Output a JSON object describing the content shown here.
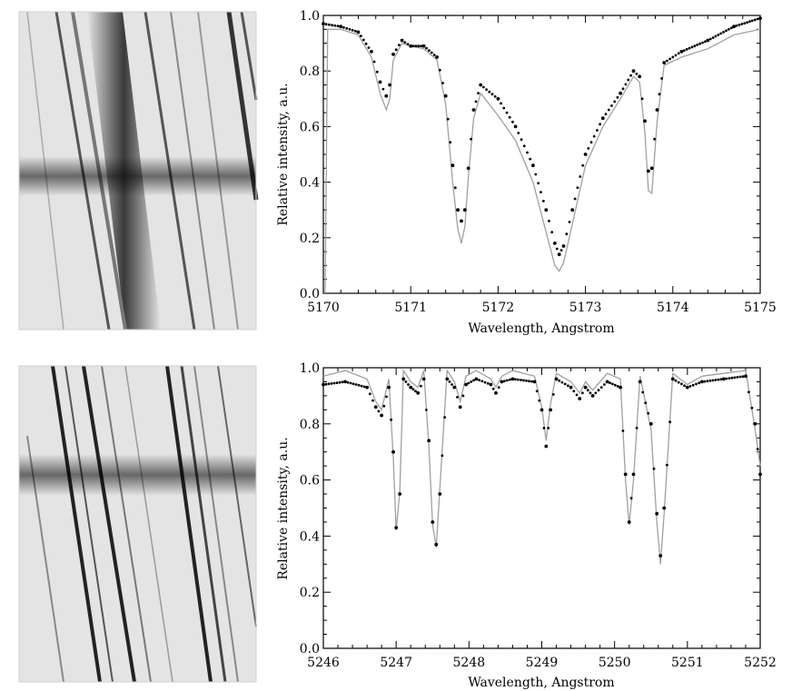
{
  "chart_data": [
    {
      "type": "scatter",
      "panel_image": "solar-spectrum-slit-image-1",
      "xlabel": "Wavelength, Angstrom",
      "ylabel": "Relative intensity, a.u.",
      "xlim": [
        5170,
        5175
      ],
      "ylim": [
        0,
        1.0
      ],
      "xticks": [
        "5170",
        "5171",
        "5172",
        "5173",
        "5174",
        "5175"
      ],
      "yticks": [
        "0.0",
        "0.2",
        "0.4",
        "0.6",
        "0.8",
        "1.0"
      ],
      "grid": false,
      "series": [
        {
          "style": "dots",
          "color": "#000000",
          "x": [
            5170.0,
            5170.2,
            5170.4,
            5170.55,
            5170.65,
            5170.72,
            5170.76,
            5170.8,
            5170.9,
            5171.0,
            5171.15,
            5171.3,
            5171.4,
            5171.48,
            5171.54,
            5171.58,
            5171.62,
            5171.66,
            5171.72,
            5171.8,
            5172.0,
            5172.2,
            5172.4,
            5172.55,
            5172.65,
            5172.7,
            5172.75,
            5172.85,
            5173.0,
            5173.2,
            5173.4,
            5173.55,
            5173.62,
            5173.68,
            5173.72,
            5173.76,
            5173.82,
            5173.9,
            5174.1,
            5174.4,
            5174.7,
            5175.0
          ],
          "y": [
            0.97,
            0.96,
            0.94,
            0.87,
            0.76,
            0.71,
            0.75,
            0.86,
            0.91,
            0.89,
            0.89,
            0.85,
            0.71,
            0.46,
            0.3,
            0.26,
            0.3,
            0.45,
            0.66,
            0.75,
            0.7,
            0.6,
            0.46,
            0.3,
            0.18,
            0.14,
            0.17,
            0.3,
            0.5,
            0.63,
            0.72,
            0.8,
            0.78,
            0.62,
            0.44,
            0.45,
            0.66,
            0.83,
            0.87,
            0.91,
            0.96,
            0.99
          ]
        },
        {
          "style": "line",
          "color": "#a0a0a0",
          "x": [
            5170.02,
            5170.05,
            5170.2,
            5170.4,
            5170.55,
            5170.65,
            5170.72,
            5170.76,
            5170.8,
            5170.9,
            5171.0,
            5171.15,
            5171.3,
            5171.4,
            5171.48,
            5171.54,
            5171.58,
            5171.62,
            5171.66,
            5171.72,
            5171.8,
            5172.0,
            5172.2,
            5172.4,
            5172.55,
            5172.65,
            5172.7,
            5172.75,
            5172.85,
            5173.0,
            5173.2,
            5173.4,
            5173.55,
            5173.62,
            5173.68,
            5173.72,
            5173.76,
            5173.82,
            5173.9,
            5174.1,
            5174.4,
            5174.7,
            5175.0
          ],
          "y": [
            0.0,
            0.95,
            0.95,
            0.93,
            0.85,
            0.72,
            0.66,
            0.7,
            0.84,
            0.9,
            0.89,
            0.88,
            0.84,
            0.68,
            0.4,
            0.23,
            0.18,
            0.24,
            0.42,
            0.63,
            0.72,
            0.64,
            0.55,
            0.4,
            0.22,
            0.1,
            0.08,
            0.11,
            0.25,
            0.46,
            0.6,
            0.7,
            0.78,
            0.76,
            0.58,
            0.37,
            0.36,
            0.62,
            0.82,
            0.85,
            0.88,
            0.93,
            0.95
          ]
        }
      ]
    },
    {
      "type": "scatter",
      "panel_image": "solar-spectrum-slit-image-2",
      "xlabel": "Wavelength, Angstrom",
      "ylabel": "Relative intensity, a.u.",
      "xlim": [
        5246,
        5252
      ],
      "ylim": [
        0,
        1.0
      ],
      "xticks": [
        "5246",
        "5247",
        "5248",
        "5249",
        "5250",
        "5251",
        "5252"
      ],
      "yticks": [
        "0.0",
        "0.2",
        "0.4",
        "0.6",
        "0.8",
        "1.0"
      ],
      "grid": false,
      "series": [
        {
          "style": "dots",
          "color": "#000000",
          "x": [
            5246.0,
            5246.3,
            5246.6,
            5246.72,
            5246.8,
            5246.9,
            5246.96,
            5247.0,
            5247.05,
            5247.1,
            5247.2,
            5247.3,
            5247.38,
            5247.45,
            5247.5,
            5247.55,
            5247.6,
            5247.7,
            5247.8,
            5247.88,
            5247.96,
            5248.1,
            5248.3,
            5248.37,
            5248.45,
            5248.6,
            5248.9,
            5249.0,
            5249.06,
            5249.12,
            5249.2,
            5249.4,
            5249.52,
            5249.6,
            5249.7,
            5249.9,
            5250.08,
            5250.15,
            5250.2,
            5250.26,
            5250.35,
            5250.5,
            5250.58,
            5250.63,
            5250.68,
            5250.8,
            5251.0,
            5251.2,
            5251.5,
            5251.8,
            5251.93,
            5252.0
          ],
          "y": [
            0.94,
            0.95,
            0.93,
            0.86,
            0.83,
            0.93,
            0.7,
            0.43,
            0.55,
            0.96,
            0.93,
            0.91,
            0.96,
            0.74,
            0.45,
            0.37,
            0.55,
            0.96,
            0.93,
            0.86,
            0.94,
            0.96,
            0.94,
            0.91,
            0.95,
            0.96,
            0.95,
            0.85,
            0.72,
            0.85,
            0.96,
            0.93,
            0.89,
            0.93,
            0.9,
            0.95,
            0.93,
            0.62,
            0.45,
            0.62,
            0.95,
            0.8,
            0.48,
            0.33,
            0.5,
            0.96,
            0.93,
            0.95,
            0.96,
            0.97,
            0.8,
            0.62
          ]
        },
        {
          "style": "line",
          "color": "#a0a0a0",
          "x": [
            5246.0,
            5246.3,
            5246.6,
            5246.72,
            5246.8,
            5246.9,
            5246.96,
            5247.0,
            5247.05,
            5247.1,
            5247.2,
            5247.3,
            5247.38,
            5247.45,
            5247.5,
            5247.55,
            5247.6,
            5247.7,
            5247.8,
            5247.88,
            5247.96,
            5248.1,
            5248.3,
            5248.37,
            5248.45,
            5248.6,
            5248.9,
            5249.0,
            5249.06,
            5249.12,
            5249.2,
            5249.4,
            5249.52,
            5249.6,
            5249.7,
            5249.9,
            5250.08,
            5250.15,
            5250.2,
            5250.26,
            5250.35,
            5250.5,
            5250.58,
            5250.63,
            5250.68,
            5250.8,
            5251.0,
            5251.2,
            5251.5,
            5251.8,
            5251.93,
            5252.0
          ],
          "y": [
            0.97,
            0.99,
            0.96,
            0.88,
            0.85,
            0.96,
            0.68,
            0.42,
            0.56,
            0.99,
            0.95,
            0.93,
            0.99,
            0.72,
            0.44,
            0.36,
            0.57,
            0.99,
            0.95,
            0.88,
            0.97,
            0.99,
            0.96,
            0.93,
            0.97,
            0.99,
            0.97,
            0.86,
            0.74,
            0.87,
            0.98,
            0.95,
            0.91,
            0.95,
            0.92,
            0.98,
            0.96,
            0.6,
            0.44,
            0.6,
            0.97,
            0.78,
            0.45,
            0.3,
            0.48,
            0.98,
            0.94,
            0.97,
            0.98,
            0.99,
            0.78,
            0.65
          ]
        }
      ]
    }
  ]
}
